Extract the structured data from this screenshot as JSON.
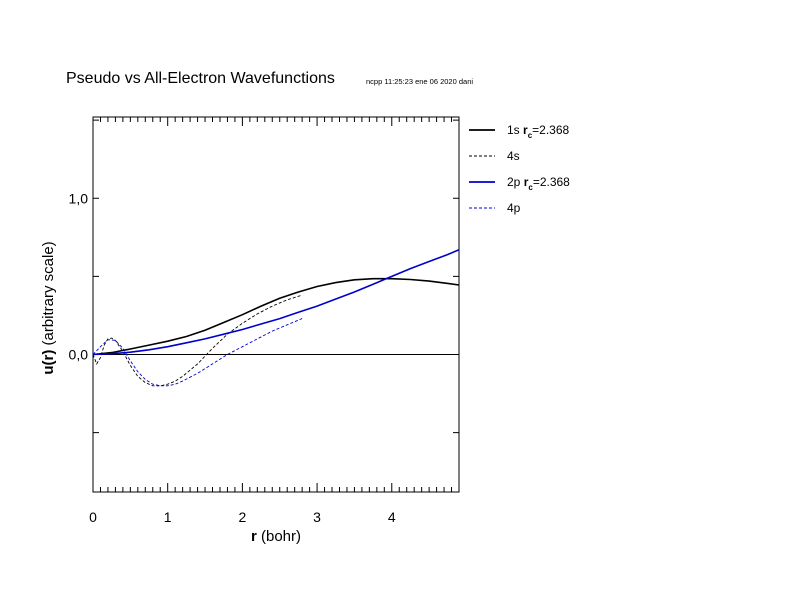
{
  "chart_data": {
    "type": "line",
    "title": "Pseudo vs All-Electron Wavefunctions",
    "subtitle": "ncpp 11:25:23 ene 06 2020 dani",
    "xlabel_bold": "r",
    "xlabel_rest": " (bohr)",
    "ylabel_bold": "u(r)",
    "ylabel_rest": "  (arbitrary scale)",
    "xlim": [
      0,
      4.9
    ],
    "ylim": [
      -0.88,
      1.52
    ],
    "x_ticks": [
      0,
      1,
      2,
      3,
      4
    ],
    "x_tick_labels": [
      "0",
      "1",
      "2",
      "3",
      "4"
    ],
    "y_ticks": [
      0.0,
      1.0
    ],
    "y_tick_labels": [
      "0,0",
      "1,0"
    ],
    "y_minor_ticks": [
      -0.5,
      0.5,
      1.5
    ],
    "zero_line": true,
    "legend_position": "right",
    "series": [
      {
        "name": "1s",
        "legend_prefix": "1s ",
        "legend_rc_label": "r",
        "legend_rc_sub": "c",
        "legend_rc_value": "=2.368",
        "color": "#000000",
        "style": "solid",
        "x": [
          0,
          0.25,
          0.5,
          0.75,
          1.0,
          1.25,
          1.5,
          1.75,
          2.0,
          2.25,
          2.5,
          2.75,
          3.0,
          3.25,
          3.5,
          3.75,
          4.0,
          4.25,
          4.5,
          4.75,
          4.9
        ],
        "y": [
          0,
          0.012,
          0.035,
          0.06,
          0.085,
          0.115,
          0.155,
          0.205,
          0.255,
          0.31,
          0.36,
          0.4,
          0.435,
          0.46,
          0.478,
          0.485,
          0.485,
          0.48,
          0.47,
          0.455,
          0.445
        ]
      },
      {
        "name": "4s",
        "legend_prefix": "4s",
        "color": "#000000",
        "style": "dashed",
        "x": [
          0,
          0.05,
          0.1,
          0.15,
          0.2,
          0.25,
          0.3,
          0.4,
          0.5,
          0.6,
          0.7,
          0.8,
          0.9,
          1.0,
          1.1,
          1.2,
          1.4,
          1.6,
          1.8,
          2.0,
          2.2,
          2.4,
          2.6,
          2.8
        ],
        "y": [
          0,
          -0.06,
          -0.02,
          0.06,
          0.1,
          0.105,
          0.09,
          0.02,
          -0.07,
          -0.14,
          -0.18,
          -0.2,
          -0.2,
          -0.19,
          -0.17,
          -0.14,
          -0.06,
          0.04,
          0.13,
          0.2,
          0.26,
          0.31,
          0.35,
          0.38
        ]
      },
      {
        "name": "2p",
        "legend_prefix": "2p ",
        "legend_rc_label": "r",
        "legend_rc_sub": "c",
        "legend_rc_value": "=2.368",
        "color": "#0000cc",
        "style": "solid",
        "x": [
          0,
          0.25,
          0.5,
          0.75,
          1.0,
          1.25,
          1.5,
          1.75,
          2.0,
          2.25,
          2.5,
          2.75,
          3.0,
          3.25,
          3.5,
          3.75,
          4.0,
          4.25,
          4.5,
          4.75,
          4.9
        ],
        "y": [
          0,
          0.005,
          0.015,
          0.03,
          0.05,
          0.075,
          0.1,
          0.13,
          0.16,
          0.195,
          0.23,
          0.27,
          0.31,
          0.355,
          0.4,
          0.45,
          0.5,
          0.55,
          0.595,
          0.64,
          0.67
        ]
      },
      {
        "name": "4p",
        "legend_prefix": "4p",
        "color": "#0000cc",
        "style": "dashed",
        "x": [
          0,
          0.1,
          0.2,
          0.3,
          0.4,
          0.5,
          0.6,
          0.7,
          0.8,
          0.9,
          1.0,
          1.1,
          1.2,
          1.4,
          1.6,
          1.8,
          2.0,
          2.2,
          2.4,
          2.6,
          2.8
        ],
        "y": [
          0,
          0.05,
          0.095,
          0.09,
          0.04,
          -0.04,
          -0.11,
          -0.16,
          -0.19,
          -0.2,
          -0.2,
          -0.19,
          -0.17,
          -0.12,
          -0.06,
          0.0,
          0.05,
          0.1,
          0.15,
          0.19,
          0.23
        ]
      }
    ]
  }
}
